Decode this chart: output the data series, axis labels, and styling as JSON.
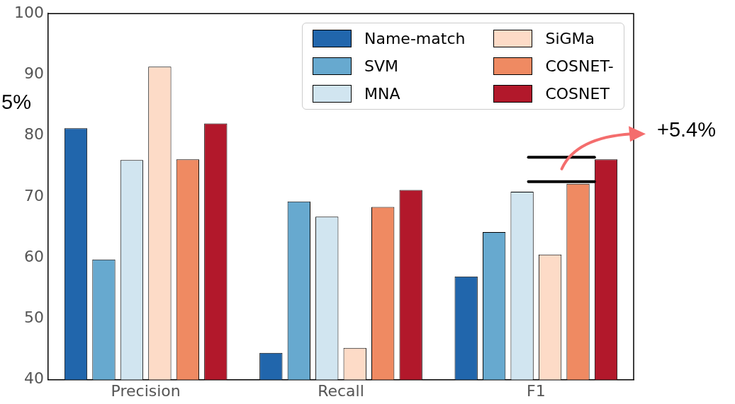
{
  "chart_data": {
    "type": "bar",
    "categories": [
      "Precision",
      "Recall",
      "F1"
    ],
    "series": [
      {
        "name": "Name-match",
        "color": "#2166ac",
        "values": [
          81.2,
          44.4,
          56.9
        ]
      },
      {
        "name": "SVM",
        "color": "#67a9cf",
        "values": [
          59.7,
          69.2,
          64.2
        ]
      },
      {
        "name": "MNA",
        "color": "#d1e5f0",
        "values": [
          76.0,
          66.7,
          70.8
        ]
      },
      {
        "name": "SiGMa",
        "color": "#fddbc7",
        "values": [
          91.3,
          45.2,
          60.5
        ]
      },
      {
        "name": "COSNET-",
        "color": "#ef8a62",
        "values": [
          76.1,
          68.3,
          72.1
        ]
      },
      {
        "name": "COSNET",
        "color": "#b2182b",
        "values": [
          82.0,
          71.1,
          76.1
        ]
      }
    ],
    "ylim": [
      40,
      100
    ],
    "yticks": [
      40,
      50,
      60,
      70,
      80,
      90,
      100
    ],
    "grid": false,
    "legend": "top right",
    "annotations": [
      "+5.4%",
      "5%"
    ]
  }
}
